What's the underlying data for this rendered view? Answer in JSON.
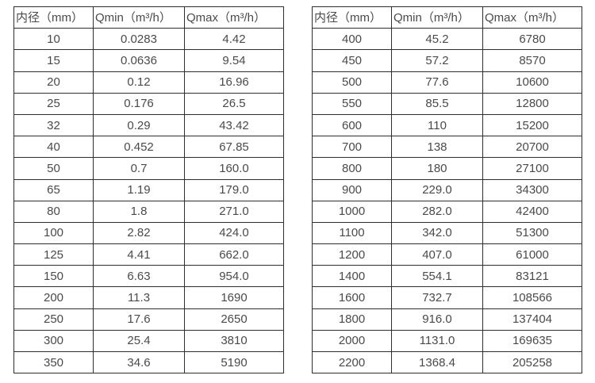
{
  "page": {
    "background": "#ffffff",
    "text_color": "#4a4a4a",
    "border_color": "#2e2e2e"
  },
  "tables": [
    {
      "name": "small-diameters",
      "headers": [
        "内径（mm）",
        "Qmin（m³/h）",
        "Qmax（m³/h）"
      ],
      "rows": [
        [
          "10",
          "0.0283",
          "4.42"
        ],
        [
          "15",
          "0.0636",
          "9.54"
        ],
        [
          "20",
          "0.12",
          "16.96"
        ],
        [
          "25",
          "0.176",
          "26.5"
        ],
        [
          "32",
          "0.29",
          "43.42"
        ],
        [
          "40",
          "0.452",
          "67.85"
        ],
        [
          "50",
          "0.7",
          "160.0"
        ],
        [
          "65",
          "1.19",
          "179.0"
        ],
        [
          "80",
          "1.8",
          "271.0"
        ],
        [
          "100",
          "2.82",
          "424.0"
        ],
        [
          "125",
          "4.41",
          "662.0"
        ],
        [
          "150",
          "6.63",
          "954.0"
        ],
        [
          "200",
          "11.3",
          "1690"
        ],
        [
          "250",
          "17.6",
          "2650"
        ],
        [
          "300",
          "25.4",
          "3810"
        ],
        [
          "350",
          "34.6",
          "5190"
        ]
      ]
    },
    {
      "name": "large-diameters",
      "headers": [
        "内径（mm）",
        "Qmin（m³/h）",
        "Qmax（m³/h）"
      ],
      "rows": [
        [
          "400",
          "45.2",
          "6780"
        ],
        [
          "450",
          "57.2",
          "8570"
        ],
        [
          "500",
          "77.6",
          "10600"
        ],
        [
          "550",
          "85.5",
          "12800"
        ],
        [
          "600",
          "110",
          "15200"
        ],
        [
          "700",
          "138",
          "20700"
        ],
        [
          "800",
          "180",
          "27100"
        ],
        [
          "900",
          "229.0",
          "34300"
        ],
        [
          "1000",
          "282.0",
          "42400"
        ],
        [
          "1100",
          "342.0",
          "51300"
        ],
        [
          "1200",
          "407.0",
          "61000"
        ],
        [
          "1400",
          "554.1",
          "83121"
        ],
        [
          "1600",
          "732.7",
          "108566"
        ],
        [
          "1800",
          "916.0",
          "137404"
        ],
        [
          "2000",
          "1131.0",
          "169635"
        ],
        [
          "2200",
          "1368.4",
          "205258"
        ]
      ]
    }
  ]
}
